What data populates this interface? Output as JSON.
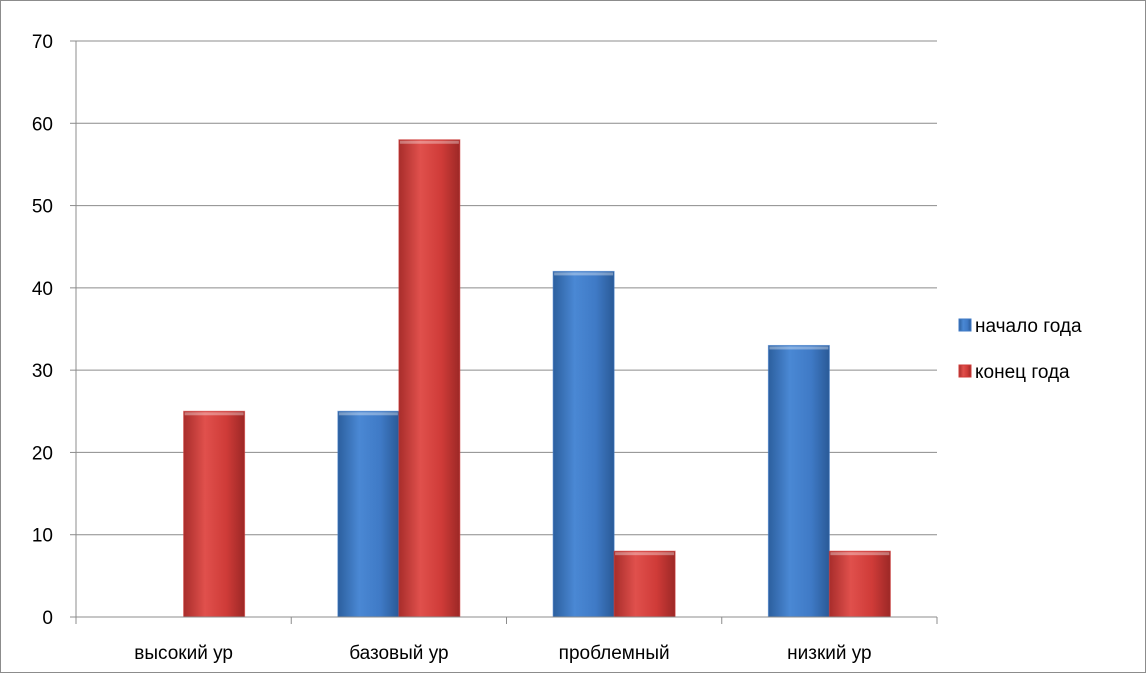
{
  "chart_data": {
    "type": "bar",
    "title": "",
    "xlabel": "",
    "ylabel": "",
    "categories": [
      "высокий ур",
      "базовый ур",
      "проблемный",
      "низкий ур"
    ],
    "series": [
      {
        "name": "начало года",
        "values": [
          0,
          25,
          42,
          33
        ],
        "color": "#3f7ac6"
      },
      {
        "name": "конец года",
        "values": [
          25,
          58,
          8,
          8
        ],
        "color": "#cf3b38"
      }
    ],
    "ylim": [
      0,
      70
    ],
    "yticks": [
      0,
      10,
      20,
      30,
      40,
      50,
      60,
      70
    ],
    "grid": true,
    "legend_position": "right"
  }
}
